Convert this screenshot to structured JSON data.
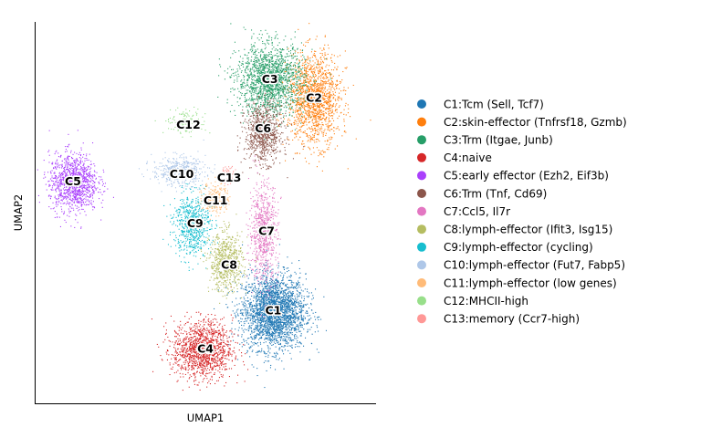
{
  "chart_data": {
    "type": "scatter",
    "title": "",
    "xlabel": "UMAP1",
    "ylabel": "UMAP2",
    "xlim": [
      0,
      100
    ],
    "ylim": [
      0,
      100
    ],
    "ticks": false,
    "grid": false,
    "legend_position": "right",
    "clusters": [
      {
        "id": "C1",
        "name": "C1:Tcm (Sell, Tcf7)",
        "color": "#1f77b4",
        "center": [
          70,
          24
        ],
        "spread": [
          8.5,
          9
        ],
        "count": 2600
      },
      {
        "id": "C2",
        "name": "C2:skin-effector (Tnfrsf18, Gzmb)",
        "color": "#ff7f0e",
        "center": [
          82,
          80
        ],
        "spread": [
          7,
          11
        ],
        "count": 1500
      },
      {
        "id": "C3",
        "name": "C3:Trm (Itgae, Junb)",
        "color": "#279e68",
        "center": [
          69,
          85
        ],
        "spread": [
          9,
          8.5
        ],
        "count": 1700
      },
      {
        "id": "C4",
        "name": "C4:naive",
        "color": "#d62728",
        "center": [
          49,
          14
        ],
        "spread": [
          8,
          7
        ],
        "count": 1300
      },
      {
        "id": "C5",
        "name": "C5:early effector (Ezh2, Eif3b)",
        "color": "#aa40fc",
        "center": [
          11,
          58
        ],
        "spread": [
          6.5,
          7
        ],
        "count": 1100
      },
      {
        "id": "C6",
        "name": "C6:Trm (Tnf, Cd69)",
        "color": "#8c564b",
        "center": [
          67,
          71
        ],
        "spread": [
          5,
          7
        ],
        "count": 800
      },
      {
        "id": "C7",
        "name": "C7:Ccl5, Il7r",
        "color": "#e377c2",
        "center": [
          67,
          45
        ],
        "spread": [
          3.8,
          12
        ],
        "count": 700
      },
      {
        "id": "C8",
        "name": "C8:lymph-effector (Ifit3, Isg15)",
        "color": "#b5bd61",
        "center": [
          56,
          37
        ],
        "spread": [
          4.5,
          7
        ],
        "count": 650
      },
      {
        "id": "C9",
        "name": "C9:lymph-effector (cycling)",
        "color": "#17becf",
        "center": [
          46,
          47
        ],
        "spread": [
          5,
          7.5
        ],
        "count": 650
      },
      {
        "id": "C10",
        "name": "C10:lymph-effector (Fut7, Fabp5)",
        "color": "#aec7e8",
        "center": [
          42,
          61
        ],
        "spread": [
          7,
          3.5
        ],
        "count": 450
      },
      {
        "id": "C11",
        "name": "C11:lymph-effector (low genes)",
        "color": "#ffbb78",
        "center": [
          53,
          54
        ],
        "spread": [
          3.5,
          4
        ],
        "count": 220
      },
      {
        "id": "C12",
        "name": "C12:MHCII-high",
        "color": "#98df8a",
        "center": [
          44,
          74
        ],
        "spread": [
          5.5,
          3
        ],
        "count": 130
      },
      {
        "id": "C13",
        "name": "C13:memory (Ccr7-high)",
        "color": "#ff9896",
        "center": [
          57,
          60
        ],
        "spread": [
          2,
          2.2
        ],
        "count": 60
      }
    ],
    "annotations": [
      {
        "text": "C1",
        "x": 70,
        "y": 24
      },
      {
        "text": "C2",
        "x": 82,
        "y": 80
      },
      {
        "text": "C3",
        "x": 69,
        "y": 85
      },
      {
        "text": "C4",
        "x": 50,
        "y": 14
      },
      {
        "text": "C5",
        "x": 11,
        "y": 58
      },
      {
        "text": "C6",
        "x": 67,
        "y": 72
      },
      {
        "text": "C7",
        "x": 68,
        "y": 45
      },
      {
        "text": "C8",
        "x": 57,
        "y": 36
      },
      {
        "text": "C9",
        "x": 47,
        "y": 47
      },
      {
        "text": "C10",
        "x": 43,
        "y": 60
      },
      {
        "text": "C11",
        "x": 53,
        "y": 53
      },
      {
        "text": "C12",
        "x": 45,
        "y": 73
      },
      {
        "text": "C13",
        "x": 57,
        "y": 59
      }
    ]
  }
}
